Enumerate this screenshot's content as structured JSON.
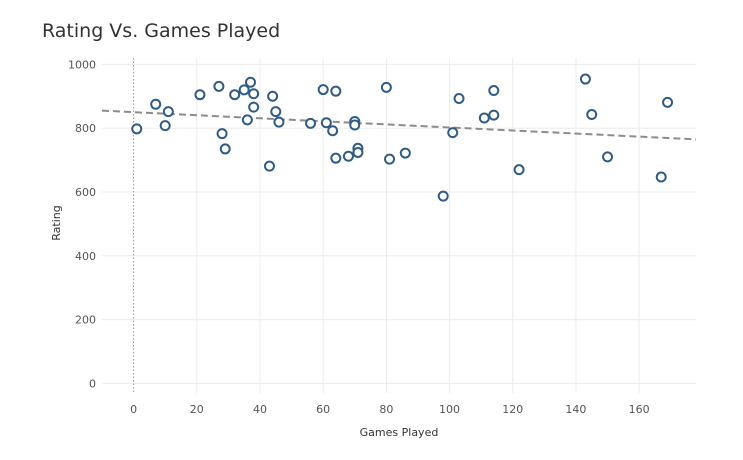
{
  "chart_data": {
    "type": "scatter",
    "title": "Rating Vs. Games Played",
    "xlabel": "Games Played",
    "ylabel": "Rating",
    "xlim": [
      -10,
      178
    ],
    "ylim": [
      -30,
      1020
    ],
    "xticks": [
      0,
      20,
      40,
      60,
      80,
      100,
      120,
      140,
      160
    ],
    "yticks": [
      0,
      200,
      400,
      600,
      800,
      1000
    ],
    "grid": true,
    "trendline": {
      "x": [
        -10,
        178
      ],
      "y": [
        855,
        765
      ]
    },
    "points": [
      {
        "x": 1,
        "y": 798
      },
      {
        "x": 7,
        "y": 875
      },
      {
        "x": 10,
        "y": 808
      },
      {
        "x": 11,
        "y": 852
      },
      {
        "x": 21,
        "y": 905
      },
      {
        "x": 27,
        "y": 931
      },
      {
        "x": 28,
        "y": 783
      },
      {
        "x": 29,
        "y": 735
      },
      {
        "x": 32,
        "y": 905
      },
      {
        "x": 35,
        "y": 920
      },
      {
        "x": 36,
        "y": 826
      },
      {
        "x": 37,
        "y": 944
      },
      {
        "x": 38,
        "y": 908
      },
      {
        "x": 38,
        "y": 866
      },
      {
        "x": 43,
        "y": 681
      },
      {
        "x": 44,
        "y": 900
      },
      {
        "x": 45,
        "y": 852
      },
      {
        "x": 46,
        "y": 819
      },
      {
        "x": 56,
        "y": 815
      },
      {
        "x": 60,
        "y": 921
      },
      {
        "x": 61,
        "y": 817
      },
      {
        "x": 63,
        "y": 792
      },
      {
        "x": 64,
        "y": 916
      },
      {
        "x": 64,
        "y": 706
      },
      {
        "x": 68,
        "y": 712
      },
      {
        "x": 70,
        "y": 821
      },
      {
        "x": 70,
        "y": 810
      },
      {
        "x": 71,
        "y": 737
      },
      {
        "x": 71,
        "y": 724
      },
      {
        "x": 80,
        "y": 928
      },
      {
        "x": 81,
        "y": 703
      },
      {
        "x": 86,
        "y": 722
      },
      {
        "x": 98,
        "y": 587
      },
      {
        "x": 101,
        "y": 786
      },
      {
        "x": 103,
        "y": 893
      },
      {
        "x": 111,
        "y": 832
      },
      {
        "x": 114,
        "y": 841
      },
      {
        "x": 114,
        "y": 918
      },
      {
        "x": 122,
        "y": 670
      },
      {
        "x": 143,
        "y": 954
      },
      {
        "x": 145,
        "y": 843
      },
      {
        "x": 150,
        "y": 710
      },
      {
        "x": 167,
        "y": 647
      },
      {
        "x": 169,
        "y": 881
      }
    ]
  },
  "colors": {
    "point_stroke": "#2e5c85",
    "trend": "#8c8c8c",
    "grid": "#ececec"
  }
}
